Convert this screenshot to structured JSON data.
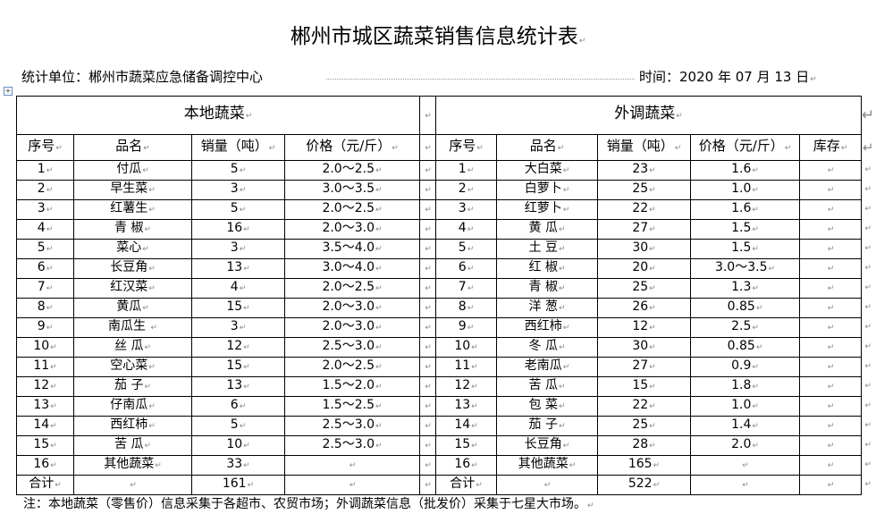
{
  "title": "郴州市城区蔬菜销售信息统计表",
  "unit_label": "统计单位：郴州市蔬菜应急储备调控中心",
  "time_label": "时间：2020 年 07 月 13 日",
  "local": {
    "section": "本地蔬菜",
    "headers": [
      "序号",
      "品名",
      "销量（吨）",
      "价格（元/斤）"
    ],
    "rows": [
      [
        "1",
        "付瓜",
        "5",
        "2.0～2.5"
      ],
      [
        "2",
        "早生菜",
        "3",
        "3.0～3.5"
      ],
      [
        "3",
        "红薯生",
        "5",
        "2.0～2.5"
      ],
      [
        "4",
        "青  椒",
        "16",
        "2.0～3.0"
      ],
      [
        "5",
        "菜心",
        "3",
        "3.5～4.0"
      ],
      [
        "6",
        "长豆角",
        "13",
        "3.0～4.0"
      ],
      [
        "7",
        "红汉菜",
        "4",
        "2.0～2.5"
      ],
      [
        "8",
        "黄瓜",
        "15",
        "2.0～3.0"
      ],
      [
        "9",
        "南瓜生 ",
        "3",
        "2.0～3.0"
      ],
      [
        "10",
        "丝  瓜",
        "12",
        "2.5～3.0"
      ],
      [
        "11",
        "空心菜",
        "15",
        "2.0～2.5"
      ],
      [
        "12",
        "茄  子",
        "13",
        "1.5～2.0"
      ],
      [
        "13",
        "仔南瓜",
        "6",
        "1.5～2.5"
      ],
      [
        "14",
        "西红柿",
        "5",
        "2.5～3.0"
      ],
      [
        "15",
        "苦  瓜",
        "10",
        "2.5～3.0"
      ],
      [
        "16",
        "其他蔬菜",
        "33",
        ""
      ]
    ],
    "total": [
      "合计",
      "",
      "161",
      ""
    ]
  },
  "external": {
    "section": "外调蔬菜",
    "headers": [
      "序号",
      "品名",
      "销量（吨）",
      "价格（元/斤）",
      "库存"
    ],
    "rows": [
      [
        "1",
        "大白菜",
        "23",
        "1.6",
        ""
      ],
      [
        "2",
        "白萝卜",
        "25",
        "1.0",
        ""
      ],
      [
        "3",
        "红萝卜",
        "22",
        "1.6",
        ""
      ],
      [
        "4",
        "黄  瓜",
        "27",
        "1.5",
        ""
      ],
      [
        "5",
        "土  豆",
        "30",
        "1.5",
        ""
      ],
      [
        "6",
        "红  椒",
        "20",
        "3.0～3.5",
        ""
      ],
      [
        "7",
        "青  椒",
        "25",
        "1.3",
        ""
      ],
      [
        "8",
        "洋  葱",
        "26",
        "0.85",
        ""
      ],
      [
        "9",
        "西红柿",
        "12",
        "2.5",
        ""
      ],
      [
        "10",
        "冬  瓜",
        "30",
        "0.85",
        ""
      ],
      [
        "11",
        "老南瓜",
        "27",
        "0.9",
        ""
      ],
      [
        "12",
        "苦  瓜",
        "15",
        "1.8",
        ""
      ],
      [
        "13",
        "包  菜",
        "22",
        "1.0",
        ""
      ],
      [
        "14",
        "茄  子",
        "25",
        "1.4",
        ""
      ],
      [
        "15",
        "长豆角",
        "28",
        "2.0",
        ""
      ],
      [
        "16",
        "其他蔬菜",
        "165",
        "",
        ""
      ]
    ],
    "total": [
      "合计",
      "",
      "522",
      "",
      ""
    ]
  },
  "note": "注：本地蔬菜（零售价）信息采集于各超市、农贸市场；外调蔬菜信息（批发价）采集于七星大市场。"
}
